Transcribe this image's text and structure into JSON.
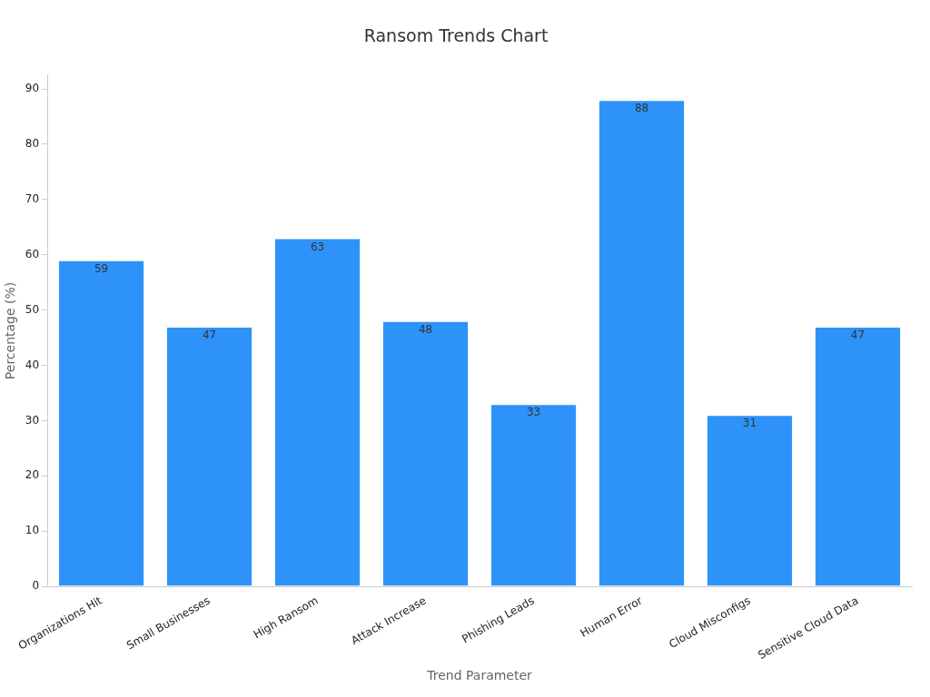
{
  "chart_data": {
    "type": "bar",
    "title": "Ransom Trends Chart",
    "xlabel": "Trend Parameter",
    "ylabel": "Percentage (%)",
    "categories": [
      "Organizations Hit",
      "Small Businesses",
      "High Ransom",
      "Attack Increase",
      "Phishing Leads",
      "Human Error",
      "Cloud Misconfigs",
      "Sensitive Cloud Data"
    ],
    "values": [
      59,
      47,
      63,
      48,
      33,
      88,
      31,
      47
    ],
    "color": "#2e93f8",
    "ylim": [
      0,
      92.5
    ],
    "yticks": [
      0,
      10,
      20,
      30,
      40,
      50,
      60,
      70,
      80,
      90
    ],
    "grid": false,
    "legend": false,
    "data_labels": true
  }
}
